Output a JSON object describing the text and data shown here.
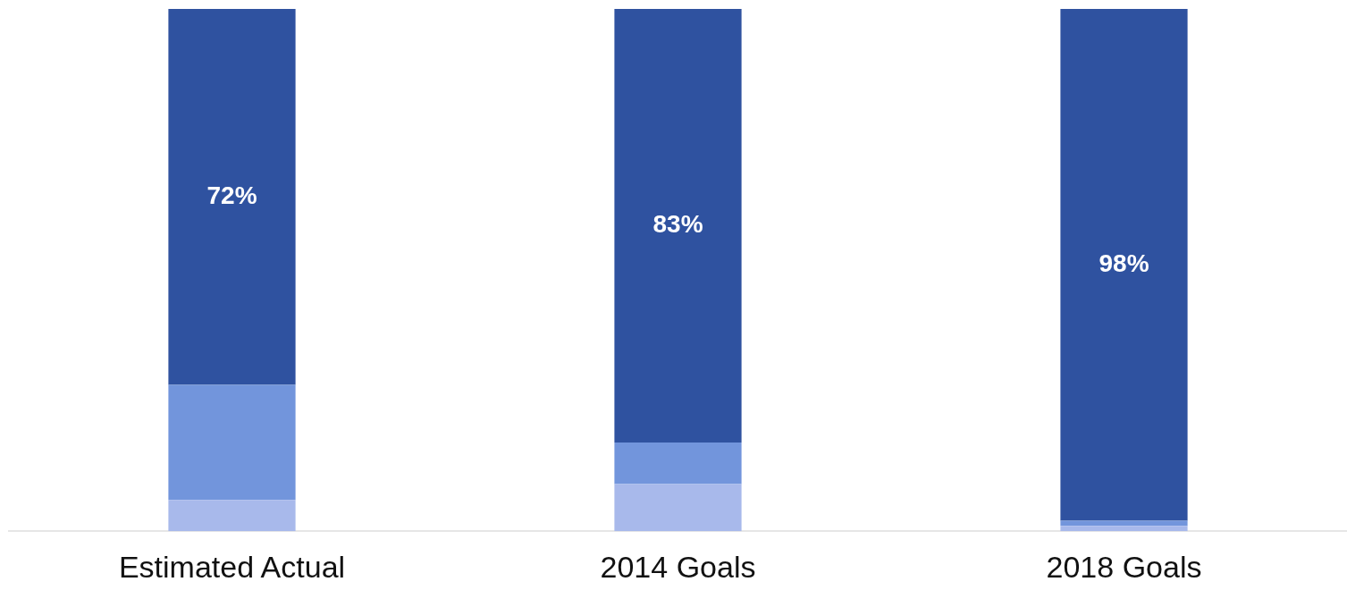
{
  "chart_data": {
    "type": "bar",
    "stacked": true,
    "categories": [
      "Estimated Actual",
      "2014 Goals",
      "2018 Goals"
    ],
    "series": [
      {
        "color": "#a8b9eb",
        "values": [
          6,
          9,
          1
        ]
      },
      {
        "color": "#7295dc",
        "values": [
          22,
          8,
          1
        ]
      },
      {
        "color": "#2f52a0",
        "values": [
          72,
          83,
          98
        ],
        "value_labels": [
          "72%",
          "83%",
          "98%"
        ]
      }
    ],
    "ylim": [
      0,
      100
    ],
    "tick_labels": "x",
    "grid": false,
    "legend": false
  }
}
